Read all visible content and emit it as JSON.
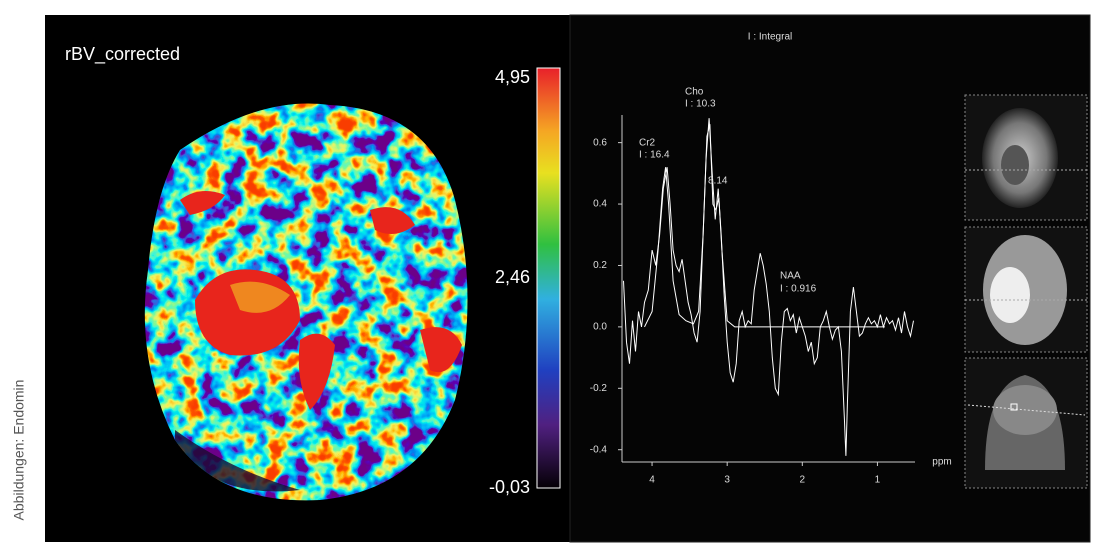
{
  "credit": "Abbildungen: Endomin",
  "map": {
    "title": "rBV_corrected",
    "colorbar": {
      "range": [
        -0.03,
        4.95
      ],
      "ticks": [
        {
          "value": 4.95,
          "label": "4,95"
        },
        {
          "value": 2.46,
          "label": "2,46"
        },
        {
          "value": -0.03,
          "label": "-0,03"
        }
      ]
    }
  },
  "chart_data": {
    "type": "line",
    "title": "I : Integral",
    "xlabel": "ppm",
    "xlim": [
      4.4,
      0.5
    ],
    "ylim": [
      -0.44,
      0.69
    ],
    "xticks": [
      4,
      3,
      2,
      1
    ],
    "yticks": [
      -0.4,
      -0.2,
      {
        "value": 0,
        "label": "0.0"
      },
      0.2,
      0.4,
      0.6
    ],
    "series": [
      {
        "color": "#ffffff",
        "x": [
          4.38,
          4.34,
          4.3,
          4.26,
          4.22,
          4.18,
          4.14,
          4.1,
          4.05,
          4.0,
          3.95,
          3.9,
          3.85,
          3.8,
          3.76,
          3.72,
          3.68,
          3.64,
          3.6,
          3.56,
          3.52,
          3.48,
          3.44,
          3.4,
          3.36,
          3.32,
          3.28,
          3.24,
          3.2,
          3.16,
          3.12,
          3.08,
          3.04,
          3.0,
          2.96,
          2.92,
          2.88,
          2.84,
          2.8,
          2.76,
          2.72,
          2.68,
          2.64,
          2.6,
          2.56,
          2.52,
          2.48,
          2.44,
          2.4,
          2.36,
          2.32,
          2.28,
          2.24,
          2.2,
          2.16,
          2.12,
          2.08,
          2.04,
          2.0,
          1.96,
          1.92,
          1.88,
          1.84,
          1.8,
          1.76,
          1.72,
          1.68,
          1.64,
          1.6,
          1.56,
          1.52,
          1.48,
          1.44,
          1.42,
          1.4,
          1.36,
          1.32,
          1.28,
          1.24,
          1.2,
          1.16,
          1.12,
          1.08,
          1.04,
          1.0,
          0.96,
          0.92,
          0.88,
          0.84,
          0.8,
          0.76,
          0.72,
          0.68,
          0.64,
          0.6,
          0.56,
          0.52
        ],
        "values": [
          0.15,
          -0.05,
          -0.12,
          0.02,
          -0.08,
          0.05,
          0.0,
          0.08,
          0.12,
          0.25,
          0.2,
          0.3,
          0.45,
          0.52,
          0.4,
          0.25,
          0.2,
          0.18,
          0.22,
          0.15,
          0.08,
          0.04,
          -0.02,
          -0.05,
          0.05,
          0.3,
          0.55,
          0.68,
          0.5,
          0.35,
          0.45,
          0.3,
          0.1,
          -0.05,
          -0.15,
          -0.18,
          -0.12,
          0.02,
          0.05,
          0.0,
          0.02,
          0.01,
          0.12,
          0.18,
          0.24,
          0.2,
          0.14,
          0.05,
          -0.1,
          -0.2,
          -0.22,
          -0.05,
          0.05,
          0.06,
          0.02,
          0.04,
          -0.02,
          0.03,
          0.0,
          -0.03,
          -0.08,
          -0.05,
          -0.12,
          -0.1,
          0.0,
          0.02,
          0.05,
          0.0,
          -0.04,
          -0.01,
          0.0,
          -0.08,
          -0.3,
          -0.42,
          -0.25,
          0.05,
          0.13,
          0.05,
          -0.03,
          -0.02,
          0.01,
          0.03,
          0.01,
          0.02,
          0.0,
          0.04,
          0.0,
          0.03,
          0.01,
          0.02,
          -0.01,
          0.03,
          -0.02,
          0.05,
          0.0,
          -0.03,
          0.02
        ]
      },
      {
        "color": "#ffffff",
        "x": [
          4.1,
          4.0,
          3.92,
          3.86,
          3.82,
          3.78,
          3.72,
          3.64,
          3.55,
          3.45,
          3.38,
          3.32,
          3.27,
          3.23,
          3.19,
          3.15,
          3.11,
          3.07,
          3.0,
          2.9,
          2.0,
          1.5,
          0.9
        ],
        "values": [
          0.0,
          0.05,
          0.25,
          0.45,
          0.52,
          0.4,
          0.15,
          0.04,
          0.02,
          0.01,
          0.05,
          0.3,
          0.62,
          0.66,
          0.4,
          0.38,
          0.42,
          0.25,
          0.02,
          0.0,
          0.0,
          0.0,
          0.0
        ]
      }
    ],
    "annotations": [
      "Cr2",
      "I : 16.4",
      "Cho",
      "I : 10.3",
      "8.14",
      "NAA",
      "I : 0.916"
    ]
  }
}
